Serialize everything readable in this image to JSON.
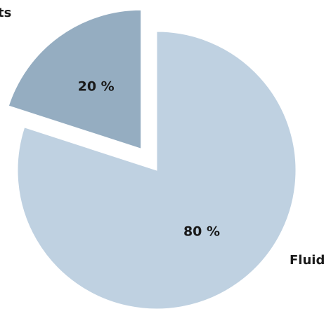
{
  "chart_data": {
    "type": "pie",
    "exploded": true,
    "categories": [
      "Solids",
      "Fluid"
    ],
    "values": [
      20,
      80
    ],
    "value_labels": [
      "20 %",
      "80 %"
    ],
    "category_labels": [
      "ts",
      "Fluid"
    ],
    "colors": [
      "#95adc1",
      "#bfd1e1"
    ],
    "title": "",
    "legend": "none"
  }
}
